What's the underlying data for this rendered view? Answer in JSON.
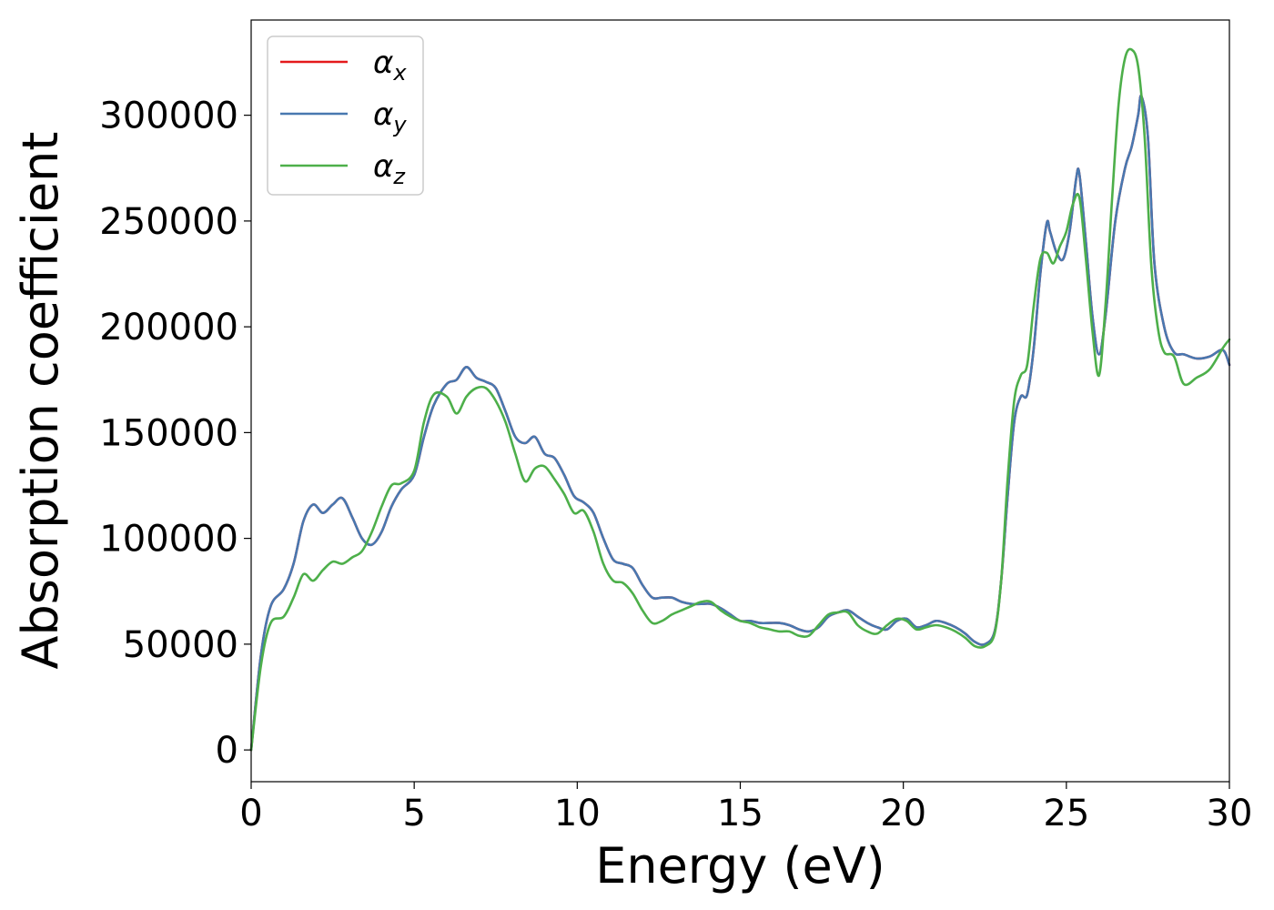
{
  "chart_data": {
    "type": "line",
    "xlabel": "Energy (eV)",
    "ylabel": "Absorption coefficient",
    "xlim": [
      0,
      30
    ],
    "ylim": [
      -15000,
      345000
    ],
    "xticks": [
      0,
      5,
      10,
      15,
      20,
      25,
      30
    ],
    "xtick_labels": [
      "0",
      "5",
      "10",
      "15",
      "20",
      "25",
      "30"
    ],
    "yticks": [
      0,
      50000,
      100000,
      150000,
      200000,
      250000,
      300000
    ],
    "ytick_labels": [
      "0",
      "50000",
      "100000",
      "150000",
      "200000",
      "250000",
      "300000"
    ],
    "grid": false,
    "legend_position": "top-left",
    "series": [
      {
        "name": "α",
        "subscript": "x",
        "color": "#e41a1c",
        "x": [
          0,
          0.3,
          0.6,
          1.0,
          1.3,
          1.6,
          1.9,
          2.2,
          2.5,
          2.8,
          3.1,
          3.4,
          3.7,
          4.0,
          4.3,
          4.6,
          5.0,
          5.3,
          5.6,
          6.0,
          6.3,
          6.6,
          6.9,
          7.2,
          7.5,
          7.8,
          8.1,
          8.4,
          8.7,
          9.0,
          9.3,
          9.6,
          9.9,
          10.2,
          10.5,
          10.8,
          11.1,
          11.4,
          11.7,
          12.0,
          12.3,
          12.6,
          12.9,
          13.2,
          13.5,
          13.8,
          14.1,
          14.4,
          14.7,
          15.0,
          15.3,
          15.6,
          15.9,
          16.2,
          16.5,
          16.8,
          17.1,
          17.4,
          17.7,
          18.0,
          18.3,
          18.6,
          18.9,
          19.2,
          19.5,
          19.8,
          20.1,
          20.4,
          20.7,
          21.0,
          21.3,
          21.6,
          21.9,
          22.2,
          22.5,
          22.8,
          23.0,
          23.2,
          23.4,
          23.6,
          23.8,
          24.0,
          24.2,
          24.4,
          24.5,
          24.7,
          24.9,
          25.1,
          25.3,
          25.4,
          25.6,
          25.8,
          26.0,
          26.2,
          26.5,
          26.8,
          27.0,
          27.2,
          27.3,
          27.5,
          27.7,
          28.0,
          28.3,
          28.6,
          29.0,
          29.4,
          29.8,
          30.0
        ],
        "y": [
          0,
          45000,
          68000,
          76000,
          88000,
          108000,
          116000,
          112000,
          116000,
          119000,
          110000,
          100000,
          97000,
          103000,
          115000,
          123000,
          130000,
          148000,
          163000,
          173000,
          175000,
          181000,
          176000,
          174000,
          171000,
          160000,
          148000,
          145000,
          148000,
          140000,
          138000,
          130000,
          120000,
          117000,
          112000,
          100000,
          90000,
          88000,
          86000,
          78000,
          72000,
          72000,
          72000,
          70000,
          69000,
          69000,
          69000,
          67000,
          64000,
          61000,
          61000,
          60000,
          60000,
          60000,
          59000,
          57000,
          56000,
          58000,
          63000,
          65000,
          66000,
          63000,
          60000,
          58000,
          57000,
          61000,
          62000,
          58000,
          59000,
          61000,
          60000,
          58000,
          55000,
          51000,
          50000,
          56000,
          80000,
          120000,
          155000,
          167000,
          168000,
          190000,
          225000,
          249000,
          245000,
          235000,
          232000,
          245000,
          270000,
          272000,
          240000,
          205000,
          187000,
          205000,
          250000,
          275000,
          285000,
          300000,
          309000,
          290000,
          230000,
          200000,
          188000,
          187000,
          185000,
          186000,
          189000,
          182000
        ]
      },
      {
        "name": "α",
        "subscript": "y",
        "color": "#4878b0",
        "x": [
          0,
          0.3,
          0.6,
          1.0,
          1.3,
          1.6,
          1.9,
          2.2,
          2.5,
          2.8,
          3.1,
          3.4,
          3.7,
          4.0,
          4.3,
          4.6,
          5.0,
          5.3,
          5.6,
          6.0,
          6.3,
          6.6,
          6.9,
          7.2,
          7.5,
          7.8,
          8.1,
          8.4,
          8.7,
          9.0,
          9.3,
          9.6,
          9.9,
          10.2,
          10.5,
          10.8,
          11.1,
          11.4,
          11.7,
          12.0,
          12.3,
          12.6,
          12.9,
          13.2,
          13.5,
          13.8,
          14.1,
          14.4,
          14.7,
          15.0,
          15.3,
          15.6,
          15.9,
          16.2,
          16.5,
          16.8,
          17.1,
          17.4,
          17.7,
          18.0,
          18.3,
          18.6,
          18.9,
          19.2,
          19.5,
          19.8,
          20.1,
          20.4,
          20.7,
          21.0,
          21.3,
          21.6,
          21.9,
          22.2,
          22.5,
          22.8,
          23.0,
          23.2,
          23.4,
          23.6,
          23.8,
          24.0,
          24.2,
          24.4,
          24.5,
          24.7,
          24.9,
          25.1,
          25.3,
          25.4,
          25.6,
          25.8,
          26.0,
          26.2,
          26.5,
          26.8,
          27.0,
          27.2,
          27.3,
          27.5,
          27.7,
          28.0,
          28.3,
          28.6,
          29.0,
          29.4,
          29.8,
          30.0
        ],
        "y": [
          0,
          45000,
          68000,
          76000,
          88000,
          108000,
          116000,
          112000,
          116000,
          119000,
          110000,
          100000,
          97000,
          103000,
          115000,
          123000,
          130000,
          148000,
          163000,
          173000,
          175000,
          181000,
          176000,
          174000,
          171000,
          160000,
          148000,
          145000,
          148000,
          140000,
          138000,
          130000,
          120000,
          117000,
          112000,
          100000,
          90000,
          88000,
          86000,
          78000,
          72000,
          72000,
          72000,
          70000,
          69000,
          69000,
          69000,
          67000,
          64000,
          61000,
          61000,
          60000,
          60000,
          60000,
          59000,
          57000,
          56000,
          58000,
          63000,
          65000,
          66000,
          63000,
          60000,
          58000,
          57000,
          61000,
          62000,
          58000,
          59000,
          61000,
          60000,
          58000,
          55000,
          51000,
          50000,
          56000,
          80000,
          120000,
          155000,
          167000,
          168000,
          190000,
          225000,
          249000,
          245000,
          235000,
          232000,
          245000,
          270000,
          272000,
          240000,
          205000,
          187000,
          205000,
          250000,
          275000,
          285000,
          300000,
          309000,
          290000,
          230000,
          200000,
          188000,
          187000,
          185000,
          186000,
          189000,
          182000
        ]
      },
      {
        "name": "α",
        "subscript": "z",
        "color": "#4daf4a",
        "x": [
          0,
          0.3,
          0.6,
          1.0,
          1.3,
          1.6,
          1.9,
          2.2,
          2.5,
          2.8,
          3.1,
          3.4,
          3.7,
          4.0,
          4.3,
          4.6,
          5.0,
          5.3,
          5.6,
          6.0,
          6.3,
          6.6,
          6.9,
          7.2,
          7.5,
          7.8,
          8.1,
          8.4,
          8.7,
          9.0,
          9.3,
          9.6,
          9.9,
          10.2,
          10.5,
          10.8,
          11.1,
          11.4,
          11.7,
          12.0,
          12.3,
          12.6,
          12.9,
          13.2,
          13.5,
          13.8,
          14.1,
          14.4,
          14.7,
          15.0,
          15.3,
          15.6,
          15.9,
          16.2,
          16.5,
          16.8,
          17.1,
          17.4,
          17.7,
          18.0,
          18.3,
          18.6,
          18.9,
          19.2,
          19.5,
          19.8,
          20.1,
          20.4,
          20.7,
          21.0,
          21.3,
          21.6,
          21.9,
          22.2,
          22.5,
          22.8,
          23.0,
          23.2,
          23.4,
          23.6,
          23.8,
          24.0,
          24.2,
          24.4,
          24.6,
          24.8,
          25.0,
          25.2,
          25.4,
          25.6,
          25.8,
          26.0,
          26.2,
          26.4,
          26.6,
          26.8,
          27.0,
          27.2,
          27.4,
          27.6,
          27.8,
          28.0,
          28.3,
          28.6,
          29.0,
          29.4,
          29.8,
          30.0
        ],
        "y": [
          0,
          40000,
          60000,
          63000,
          72000,
          83000,
          80000,
          85000,
          89000,
          88000,
          91000,
          94000,
          103000,
          115000,
          125000,
          126000,
          132000,
          155000,
          168000,
          167000,
          159000,
          167000,
          171000,
          171000,
          165000,
          155000,
          140000,
          127000,
          133000,
          134000,
          128000,
          121000,
          112000,
          113000,
          103000,
          88000,
          80000,
          79000,
          74000,
          66000,
          60000,
          61000,
          64000,
          66000,
          68000,
          70000,
          70000,
          66000,
          63000,
          61000,
          60000,
          58000,
          57000,
          56000,
          56000,
          54000,
          54000,
          59000,
          64000,
          65000,
          65000,
          59000,
          56000,
          55000,
          59000,
          62000,
          61000,
          57000,
          58000,
          59000,
          58000,
          56000,
          53000,
          49000,
          49000,
          55000,
          80000,
          128000,
          165000,
          177000,
          182000,
          210000,
          232000,
          235000,
          230000,
          238000,
          245000,
          258000,
          261000,
          232000,
          198000,
          177000,
          210000,
          260000,
          305000,
          327000,
          331000,
          323000,
          290000,
          230000,
          200000,
          188000,
          186000,
          173000,
          176000,
          180000,
          190000,
          194000
        ]
      }
    ]
  }
}
